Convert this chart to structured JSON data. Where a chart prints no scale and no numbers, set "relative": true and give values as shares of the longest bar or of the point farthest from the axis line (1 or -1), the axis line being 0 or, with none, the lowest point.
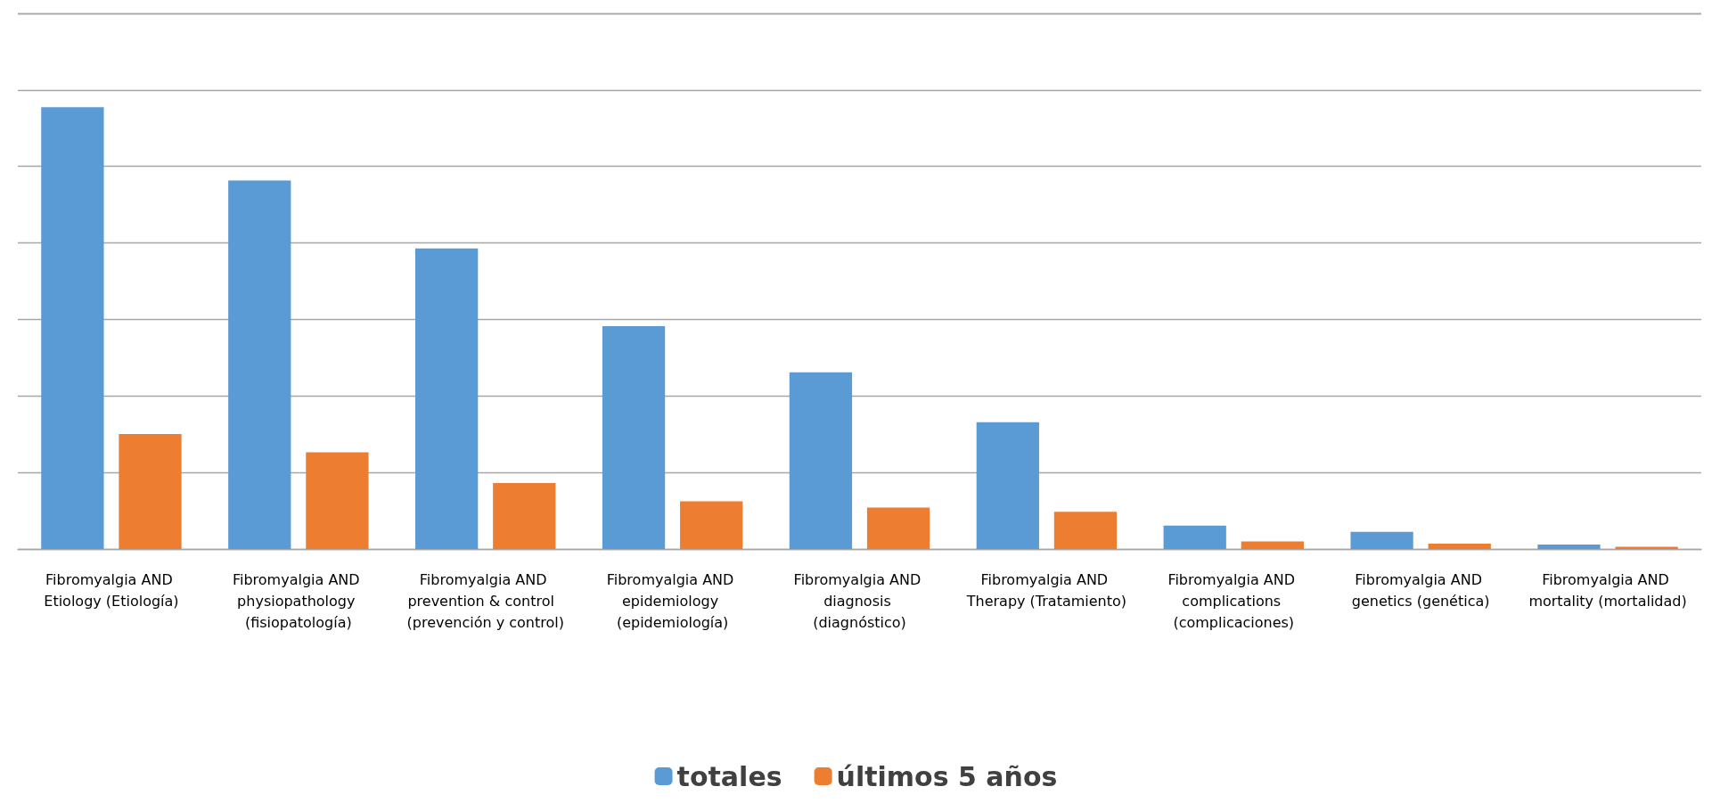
{
  "chart_data": {
    "type": "bar",
    "relative": true,
    "grid": "y",
    "legend": "bottom",
    "categories": [
      "Fibromyalgia AND Etiology (Etiología)",
      "Fibromyalgia AND physiopathology (fisiopatología)",
      "Fibromyalgia AND prevention & control  (prevención y control)",
      "Fibromyalgia AND epidemiology (epidemiología)",
      "Fibromyalgia AND diagnosis (diagnóstico)",
      "Fibromyalgia AND Therapy (Tratamiento)",
      "Fibromyalgia AND complications (complicaciones)",
      "Fibromyalgia AND genetics (genética)",
      "Fibromyalgia AND mortality (mortalidad)"
    ],
    "series": [
      {
        "name": "totales",
        "color": "#5b9bd5",
        "values": [
          1,
          0.834,
          0.68,
          0.504,
          0.4,
          0.287,
          0.053,
          0.039,
          0.01
        ]
      },
      {
        "name": "últimos 5 años",
        "color": "#ed7d31",
        "values": [
          0.26,
          0.219,
          0.149,
          0.108,
          0.094,
          0.084,
          0.017,
          0.012,
          0.005
        ]
      }
    ]
  }
}
